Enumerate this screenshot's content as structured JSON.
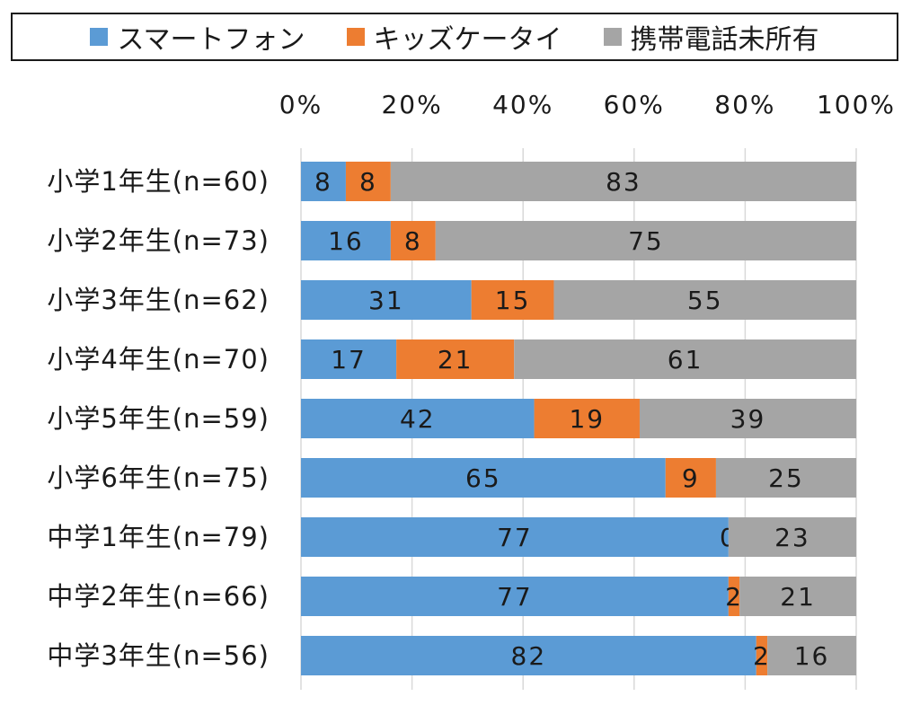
{
  "chart_data": {
    "type": "bar",
    "orientation": "horizontal",
    "stacked": "percent",
    "categories": [
      "小学1年生(n=60)",
      "小学2年生(n=73)",
      "小学3年生(n=62)",
      "小学4年生(n=70)",
      "小学5年生(n=59)",
      "小学6年生(n=75)",
      "中学1年生(n=79)",
      "中学2年生(n=66)",
      "中学3年生(n=56)"
    ],
    "series": [
      {
        "name": "スマートフォン",
        "color": "#5b9bd5",
        "values": [
          8,
          16,
          31,
          17,
          42,
          65,
          77,
          77,
          82
        ]
      },
      {
        "name": "キッズケータイ",
        "color": "#ed7d31",
        "values": [
          8,
          8,
          15,
          21,
          19,
          9,
          0,
          2,
          2
        ]
      },
      {
        "name": "携帯電話未所有",
        "color": "#a5a5a5",
        "values": [
          83,
          75,
          55,
          61,
          39,
          25,
          23,
          21,
          16
        ]
      }
    ],
    "xlim": [
      0,
      100
    ],
    "x_ticks": [
      "0%",
      "20%",
      "40%",
      "60%",
      "80%",
      "100%"
    ],
    "x_axis_position": "top",
    "grid": true,
    "legend_position": "top",
    "title": "",
    "xlabel": "",
    "ylabel": ""
  }
}
